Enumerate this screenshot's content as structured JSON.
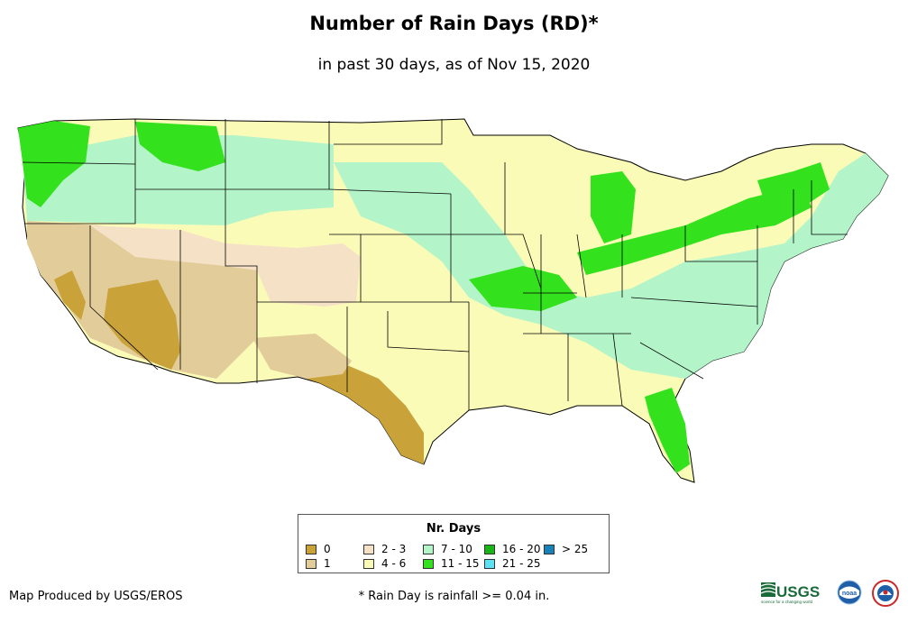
{
  "title": "Number of Rain Days (RD)*",
  "subtitle": "in past 30 days, as of Nov 15, 2020",
  "legend": {
    "title": "Nr. Days",
    "items": [
      {
        "label": "0",
        "color": "#c9a23a"
      },
      {
        "label": "1",
        "color": "#e2cc9a"
      },
      {
        "label": "2 - 3",
        "color": "#f5e1c6"
      },
      {
        "label": "4 - 6",
        "color": "#fbfbb8"
      },
      {
        "label": "7 - 10",
        "color": "#b3f5c9"
      },
      {
        "label": "11 - 15",
        "color": "#33e11c"
      },
      {
        "label": "16 - 20",
        "color": "#18b418"
      },
      {
        "label": "21 - 25",
        "color": "#5ce1f5"
      },
      {
        "label": "> 25",
        "color": "#1a80b8"
      }
    ]
  },
  "credit": "Map Produced by USGS/EROS",
  "footnote": "* Rain Day is rainfall >= 0.04 in.",
  "logos": {
    "usgs_text": "USGS",
    "usgs_tagline": "science for a changing world",
    "noaa_text": "noaa",
    "nws_icon": "nws-seal-icon"
  }
}
